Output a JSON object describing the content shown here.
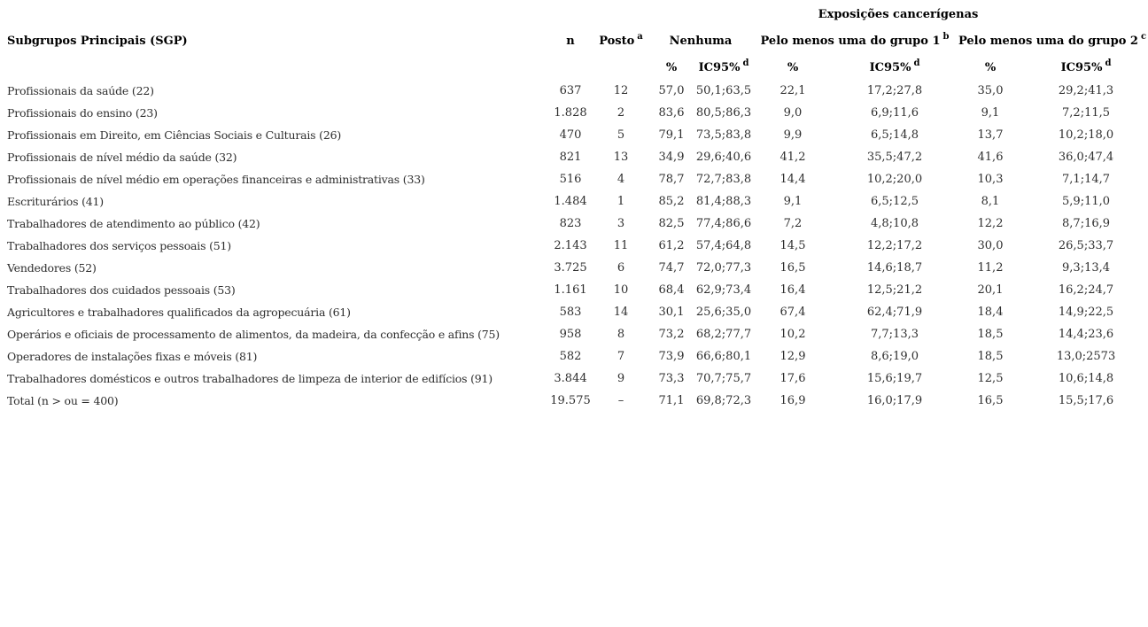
{
  "table": {
    "group_title": "Exposições cancerígenas",
    "headers": {
      "sgp": "Subgrupos Principais (SGP)",
      "n": "n",
      "posto": "Posto",
      "posto_note": "a",
      "nenhuma": "Nenhuma",
      "grupo1": "Pelo menos uma do grupo 1",
      "grupo1_note": "b",
      "grupo2": "Pelo menos uma do grupo 2",
      "grupo2_note": "c",
      "pct": "%",
      "ic95": "IC95%",
      "ic95_note": "d"
    },
    "rows": [
      {
        "sgp": "Profissionais da saúde (22)",
        "n": "637",
        "posto": "12",
        "nen_pct": "57,0",
        "nen_ic": "50,1;63,5",
        "g1_pct": "22,1",
        "g1_ic": "17,2;27,8",
        "g2_pct": "35,0",
        "g2_ic": "29,2;41,3"
      },
      {
        "sgp": "Profissionais do ensino (23)",
        "n": "1.828",
        "posto": "2",
        "nen_pct": "83,6",
        "nen_ic": "80,5;86,3",
        "g1_pct": "9,0",
        "g1_ic": "6,9;11,6",
        "g2_pct": "9,1",
        "g2_ic": "7,2;11,5"
      },
      {
        "sgp": "Profissionais em Direito, em Ciências Sociais e Culturais (26)",
        "n": "470",
        "posto": "5",
        "nen_pct": "79,1",
        "nen_ic": "73,5;83,8",
        "g1_pct": "9,9",
        "g1_ic": "6,5;14,8",
        "g2_pct": "13,7",
        "g2_ic": "10,2;18,0"
      },
      {
        "sgp": "Profissionais de nível médio da saúde (32)",
        "n": "821",
        "posto": "13",
        "nen_pct": "34,9",
        "nen_ic": "29,6;40,6",
        "g1_pct": "41,2",
        "g1_ic": "35,5;47,2",
        "g2_pct": "41,6",
        "g2_ic": "36,0;47,4"
      },
      {
        "sgp": "Profissionais de nível médio em operações financeiras e administrativas (33)",
        "n": "516",
        "posto": "4",
        "nen_pct": "78,7",
        "nen_ic": "72,7;83,8",
        "g1_pct": "14,4",
        "g1_ic": "10,2;20,0",
        "g2_pct": "10,3",
        "g2_ic": "7,1;14,7"
      },
      {
        "sgp": "Escriturários (41)",
        "n": "1.484",
        "posto": "1",
        "nen_pct": "85,2",
        "nen_ic": "81,4;88,3",
        "g1_pct": "9,1",
        "g1_ic": "6,5;12,5",
        "g2_pct": "8,1",
        "g2_ic": "5,9;11,0"
      },
      {
        "sgp": "Trabalhadores de atendimento ao público (42)",
        "n": "823",
        "posto": "3",
        "nen_pct": "82,5",
        "nen_ic": "77,4;86,6",
        "g1_pct": "7,2",
        "g1_ic": "4,8;10,8",
        "g2_pct": "12,2",
        "g2_ic": "8,7;16,9"
      },
      {
        "sgp": "Trabalhadores dos serviços pessoais (51)",
        "n": "2.143",
        "posto": "11",
        "nen_pct": "61,2",
        "nen_ic": "57,4;64,8",
        "g1_pct": "14,5",
        "g1_ic": "12,2;17,2",
        "g2_pct": "30,0",
        "g2_ic": "26,5;33,7"
      },
      {
        "sgp": "Vendedores (52)",
        "n": "3.725",
        "posto": "6",
        "nen_pct": "74,7",
        "nen_ic": "72,0;77,3",
        "g1_pct": "16,5",
        "g1_ic": "14,6;18,7",
        "g2_pct": "11,2",
        "g2_ic": "9,3;13,4"
      },
      {
        "sgp": "Trabalhadores dos cuidados pessoais (53)",
        "n": "1.161",
        "posto": "10",
        "nen_pct": "68,4",
        "nen_ic": "62,9;73,4",
        "g1_pct": "16,4",
        "g1_ic": "12,5;21,2",
        "g2_pct": "20,1",
        "g2_ic": "16,2;24,7"
      },
      {
        "sgp": "Agricultores e trabalhadores qualificados da agropecuária (61)",
        "n": "583",
        "posto": "14",
        "nen_pct": "30,1",
        "nen_ic": "25,6;35,0",
        "g1_pct": "67,4",
        "g1_ic": "62,4;71,9",
        "g2_pct": "18,4",
        "g2_ic": "14,9;22,5"
      },
      {
        "sgp": "Operários e oficiais de processamento de alimentos, da madeira, da confecção e afins (75)",
        "n": "958",
        "posto": "8",
        "nen_pct": "73,2",
        "nen_ic": "68,2;77,7",
        "g1_pct": "10,2",
        "g1_ic": "7,7;13,3",
        "g2_pct": "18,5",
        "g2_ic": "14,4;23,6"
      },
      {
        "sgp": "Operadores de instalações fixas e móveis (81)",
        "n": "582",
        "posto": "7",
        "nen_pct": "73,9",
        "nen_ic": "66,6;80,1",
        "g1_pct": "12,9",
        "g1_ic": "8,6;19,0",
        "g2_pct": "18,5",
        "g2_ic": "13,0;2573"
      },
      {
        "sgp": "Trabalhadores domésticos e outros trabalhadores de limpeza de interior de edifícios (91)",
        "n": "3.844",
        "posto": "9",
        "nen_pct": "73,3",
        "nen_ic": "70,7;75,7",
        "g1_pct": "17,6",
        "g1_ic": "15,6;19,7",
        "g2_pct": "12,5",
        "g2_ic": "10,6;14,8"
      },
      {
        "sgp": "Total (n > ou = 400)",
        "n": "19.575",
        "posto": "–",
        "nen_pct": "71,1",
        "nen_ic": "69,8;72,3",
        "g1_pct": "16,9",
        "g1_ic": "16,0;17,9",
        "g2_pct": "16,5",
        "g2_ic": "15,5;17,6"
      }
    ]
  },
  "colors": {
    "background": "#ffffff",
    "header_text": "#000000",
    "body_text": "#2e2e2e"
  }
}
